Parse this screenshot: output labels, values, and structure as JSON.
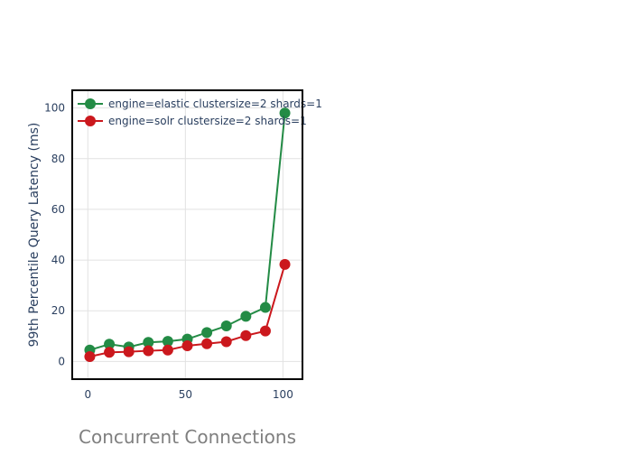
{
  "chart_data": {
    "type": "line",
    "title": "",
    "xlabel": "Concurrent Connections",
    "ylabel": "99th Percentile Query Latency (ms)",
    "xlim": [
      -8,
      110
    ],
    "ylim": [
      -7,
      107
    ],
    "x_ticks": [
      0,
      50,
      100
    ],
    "y_ticks": [
      0,
      20,
      40,
      60,
      80,
      100
    ],
    "grid": true,
    "legend_position": "top-left",
    "series": [
      {
        "name": "engine=elastic clustersize=2 shards=1",
        "color": "#238b45",
        "x": [
          1,
          11,
          21,
          31,
          41,
          51,
          61,
          71,
          81,
          91,
          101
        ],
        "y": [
          4.5,
          6.8,
          5.7,
          7.5,
          7.9,
          8.8,
          11.4,
          14.0,
          17.8,
          21.3,
          98.0
        ]
      },
      {
        "name": "engine=solr clustersize=2 shards=1",
        "color": "#cb181d",
        "x": [
          1,
          11,
          21,
          31,
          41,
          51,
          61,
          71,
          81,
          91,
          101
        ],
        "y": [
          1.9,
          3.6,
          3.8,
          4.2,
          4.5,
          6.2,
          7.0,
          7.8,
          10.2,
          12.0,
          38.3
        ]
      }
    ]
  }
}
